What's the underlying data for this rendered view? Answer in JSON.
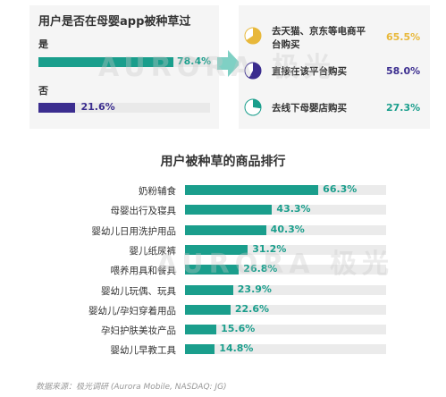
{
  "section1": {
    "title": "用户是否在母婴app被种草过",
    "rows": [
      {
        "label": "是",
        "value": 78.4,
        "display": "78.4%",
        "color": "#1a9e8c"
      },
      {
        "label": "否",
        "value": 21.6,
        "display": "21.6%",
        "color": "#3b2d8f"
      }
    ]
  },
  "section2": {
    "items": [
      {
        "text_line1": "去天猫、京东等电商平",
        "text_line2": "台购买",
        "display": "65.5%",
        "value": 65.5,
        "color": "#e8b83a",
        "icon": "pie-icon-yellow"
      },
      {
        "text_line1": "直接在该平台购买",
        "text_line2": "",
        "display": "58.0%",
        "value": 58.0,
        "color": "#3b2d8f",
        "icon": "pie-icon-purple"
      },
      {
        "text_line1": "去线下母婴店购买",
        "text_line2": "",
        "display": "27.3%",
        "value": 27.3,
        "color": "#1a9e8c",
        "icon": "pie-icon-teal"
      }
    ]
  },
  "chart_data": {
    "type": "bar",
    "title": "用户被种草的商品排行",
    "categories": [
      "奶粉辅食",
      "母婴出行及寝具",
      "婴幼儿日用洗护用品",
      "婴儿纸尿裤",
      "喂养用具和餐具",
      "婴幼儿玩偶、玩具",
      "婴幼儿/孕妇穿着用品",
      "孕妇护肤美妆产品",
      "婴幼儿早教工具"
    ],
    "values": [
      66.3,
      43.3,
      40.3,
      31.2,
      26.8,
      23.9,
      22.6,
      15.6,
      14.8
    ],
    "value_labels": [
      "66.3%",
      "43.3%",
      "40.3%",
      "31.2%",
      "26.8%",
      "23.9%",
      "22.6%",
      "15.6%",
      "14.8%"
    ],
    "color": "#1a9e8c",
    "xlim": [
      0,
      100
    ],
    "orientation": "horizontal"
  },
  "source": "数据来源：极光调研 (Aurora Mobile, NASDAQ: JG)",
  "watermark": "AURORA 极光"
}
